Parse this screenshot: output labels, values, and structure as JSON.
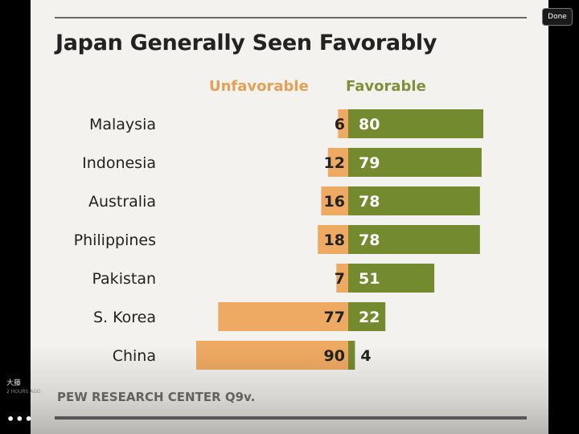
{
  "viewer": {
    "done_label": "Done",
    "more_label": "•••",
    "poster_name": "大藤",
    "post_time": "2 HOURS AGO"
  },
  "chart_data": {
    "type": "bar",
    "title": "Japan Generally Seen Favorably",
    "legend": [
      "Unfavorable",
      "Favorable"
    ],
    "categories": [
      "Malaysia",
      "Indonesia",
      "Australia",
      "Philippines",
      "Pakistan",
      "S. Korea",
      "China"
    ],
    "series": [
      {
        "name": "Unfavorable",
        "values": [
          6,
          12,
          16,
          18,
          7,
          77,
          90
        ],
        "color": "#eeaa62"
      },
      {
        "name": "Favorable",
        "values": [
          80,
          79,
          78,
          78,
          51,
          22,
          4
        ],
        "color": "#738a2e"
      }
    ],
    "source": "PEW RESEARCH CENTER Q9v."
  }
}
